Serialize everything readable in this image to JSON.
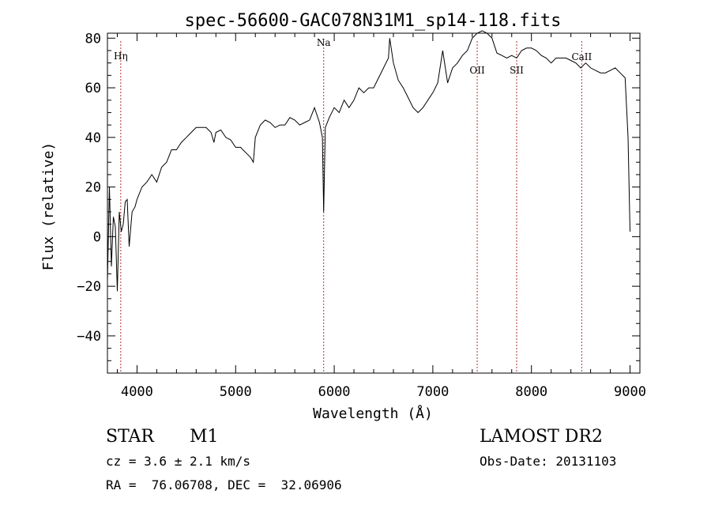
{
  "chart_data": {
    "type": "line",
    "title": "spec-56600-GAC078N31M1_sp14-118.fits",
    "xlabel": "Wavelength (Å)",
    "ylabel": "Flux (relative)",
    "xlim": [
      3700,
      9100
    ],
    "ylim": [
      -55,
      82
    ],
    "x_ticks": [
      4000,
      5000,
      6000,
      7000,
      8000,
      9000
    ],
    "x_tick_labels": [
      "4000",
      "5000",
      "6000",
      "7000",
      "8000",
      "9000"
    ],
    "y_ticks": [
      -40,
      -20,
      0,
      20,
      40,
      60,
      80
    ],
    "y_tick_labels": [
      "−40",
      "−20",
      "0",
      "20",
      "40",
      "60",
      "80"
    ],
    "grid": false,
    "lines": [
      {
        "label": "Hη",
        "wavelength": 3835
      },
      {
        "label": "Na",
        "wavelength": 5893
      },
      {
        "label": "OII",
        "wavelength": 7450
      },
      {
        "label": "SII",
        "wavelength": 7850
      },
      {
        "label": "CaII",
        "wavelength": 8510
      }
    ],
    "series": [
      {
        "x": [
          3700,
          3720,
          3740,
          3760,
          3780,
          3800,
          3820,
          3840,
          3860,
          3880,
          3900,
          3920,
          3950,
          3980,
          4000,
          4050,
          4100,
          4150,
          4200,
          4250,
          4300,
          4350,
          4400,
          4450,
          4500,
          4550,
          4600,
          4650,
          4700,
          4750,
          4780,
          4800,
          4850,
          4900,
          4950,
          5000,
          5050,
          5100,
          5150,
          5180,
          5200,
          5250,
          5300,
          5350,
          5400,
          5450,
          5500,
          5550,
          5600,
          5650,
          5700,
          5750,
          5800,
          5850,
          5880,
          5893,
          5910,
          5950,
          6000,
          6050,
          6100,
          6150,
          6200,
          6250,
          6300,
          6350,
          6400,
          6450,
          6500,
          6550,
          6563,
          6600,
          6650,
          6700,
          6750,
          6800,
          6850,
          6900,
          6950,
          7000,
          7050,
          7100,
          7150,
          7200,
          7250,
          7300,
          7350,
          7400,
          7450,
          7500,
          7550,
          7600,
          7650,
          7700,
          7750,
          7800,
          7850,
          7900,
          7950,
          8000,
          8050,
          8100,
          8150,
          8200,
          8250,
          8300,
          8350,
          8400,
          8450,
          8500,
          8550,
          8600,
          8650,
          8700,
          8750,
          8800,
          8850,
          8900,
          8950,
          8980,
          9000
        ],
        "y": [
          -18,
          20,
          -12,
          8,
          4,
          -22,
          10,
          2,
          5,
          14,
          15,
          -4,
          10,
          12,
          15,
          20,
          22,
          25,
          22,
          28,
          30,
          35,
          35,
          38,
          40,
          42,
          44,
          44,
          44,
          42,
          38,
          42,
          43,
          40,
          39,
          36,
          36,
          34,
          32,
          30,
          40,
          45,
          47,
          46,
          44,
          45,
          45,
          48,
          47,
          45,
          46,
          47,
          52,
          46,
          40,
          10,
          44,
          48,
          52,
          50,
          55,
          52,
          55,
          60,
          58,
          60,
          60,
          64,
          68,
          72,
          80,
          70,
          63,
          60,
          56,
          52,
          50,
          52,
          55,
          58,
          62,
          75,
          62,
          68,
          70,
          73,
          75,
          80,
          82,
          83,
          82,
          80,
          74,
          73,
          72,
          73,
          72,
          75,
          76,
          76,
          75,
          73,
          72,
          70,
          72,
          72,
          72,
          71,
          70,
          68,
          70,
          68,
          67,
          66,
          66,
          67,
          68,
          66,
          64,
          40,
          2
        ]
      }
    ]
  },
  "info": {
    "object_type": "STAR",
    "subclass": "M1",
    "survey": "LAMOST DR2",
    "cz_text": "cz = 3.6 ± 2.1 km/s",
    "obs_date_text": "Obs-Date: 20131103",
    "coords_text": "RA =  76.06708, DEC =  32.06906"
  }
}
